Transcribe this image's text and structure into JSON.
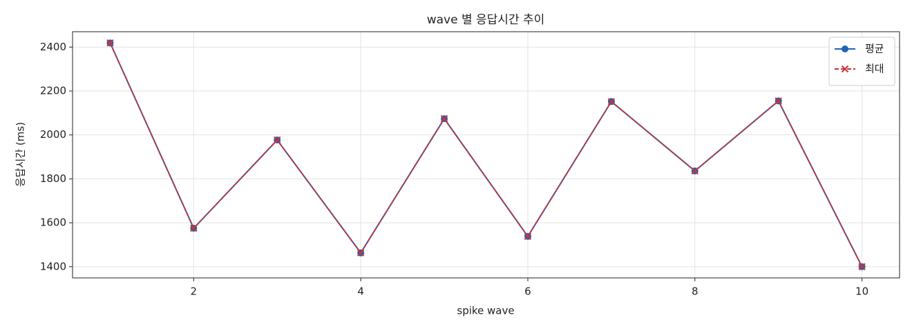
{
  "chart_data": {
    "type": "line",
    "title": "wave 별 응답시간 추이",
    "x_label": "spike wave",
    "y_label": "응답시간 (ms)",
    "x": [
      1,
      2,
      3,
      4,
      5,
      6,
      7,
      8,
      9,
      10
    ],
    "series": [
      {
        "name": "평균",
        "color": "#1f62b8",
        "marker": "o",
        "linestyle": "solid",
        "values": [
          2419,
          1575,
          1977,
          1463,
          2074,
          1538,
          2152,
          1836,
          2155,
          1400
        ]
      },
      {
        "name": "최대",
        "color": "#cc3333",
        "marker": "x",
        "linestyle": "dashed",
        "values": [
          2419,
          1575,
          1977,
          1463,
          2074,
          1538,
          2152,
          1836,
          2155,
          1400
        ]
      }
    ],
    "xlim": [
      0.55,
      10.45
    ],
    "xticks": [
      2,
      4,
      6,
      8,
      10
    ],
    "ylim": [
      1349,
      2470
    ],
    "yticks": [
      1400,
      1600,
      1800,
      2000,
      2200,
      2400
    ],
    "grid": true,
    "legend": "upper right"
  }
}
